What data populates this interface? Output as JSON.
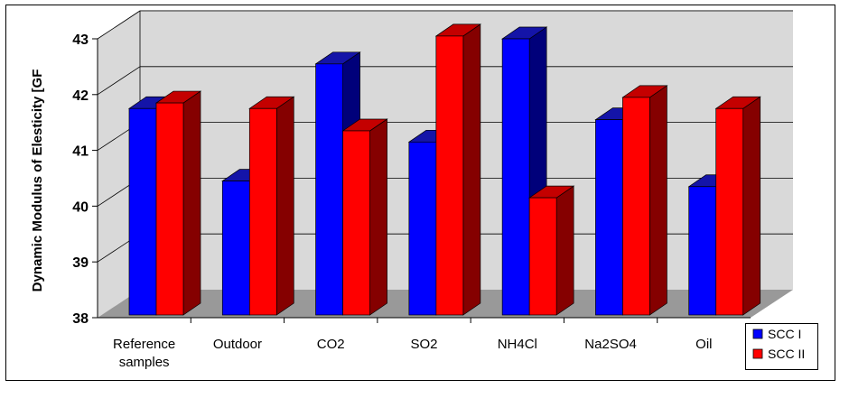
{
  "chart_data": {
    "type": "bar",
    "title": "",
    "xlabel": "",
    "ylabel": "Dynamic Modulus of Elesticity [GF",
    "categories": [
      [
        "Reference",
        "samples"
      ],
      [
        "Outdoor"
      ],
      [
        "CO2"
      ],
      [
        "SO2"
      ],
      [
        "NH4Cl"
      ],
      [
        "Na2SO4"
      ],
      [
        "Oil"
      ]
    ],
    "series": [
      {
        "name": "SCC I",
        "values": [
          41.75,
          40.45,
          42.55,
          41.15,
          43.0,
          41.55,
          40.35
        ]
      },
      {
        "name": "SCC II",
        "values": [
          41.85,
          41.75,
          41.35,
          43.05,
          40.15,
          41.95,
          41.75
        ]
      }
    ],
    "ylim": [
      38,
      43
    ],
    "yticks": [
      "38",
      "39",
      "40",
      "41",
      "42",
      "43"
    ],
    "grid": true,
    "legend_position": "bottom-right",
    "colors": {
      "series": [
        "#0000ff",
        "#ff0000"
      ],
      "series_top": [
        "#1414a8",
        "#c40000"
      ],
      "series_side": [
        "#00007a",
        "#850000"
      ],
      "wall": "#d9d9d9",
      "floor": "#999999",
      "border": "#000000"
    }
  }
}
